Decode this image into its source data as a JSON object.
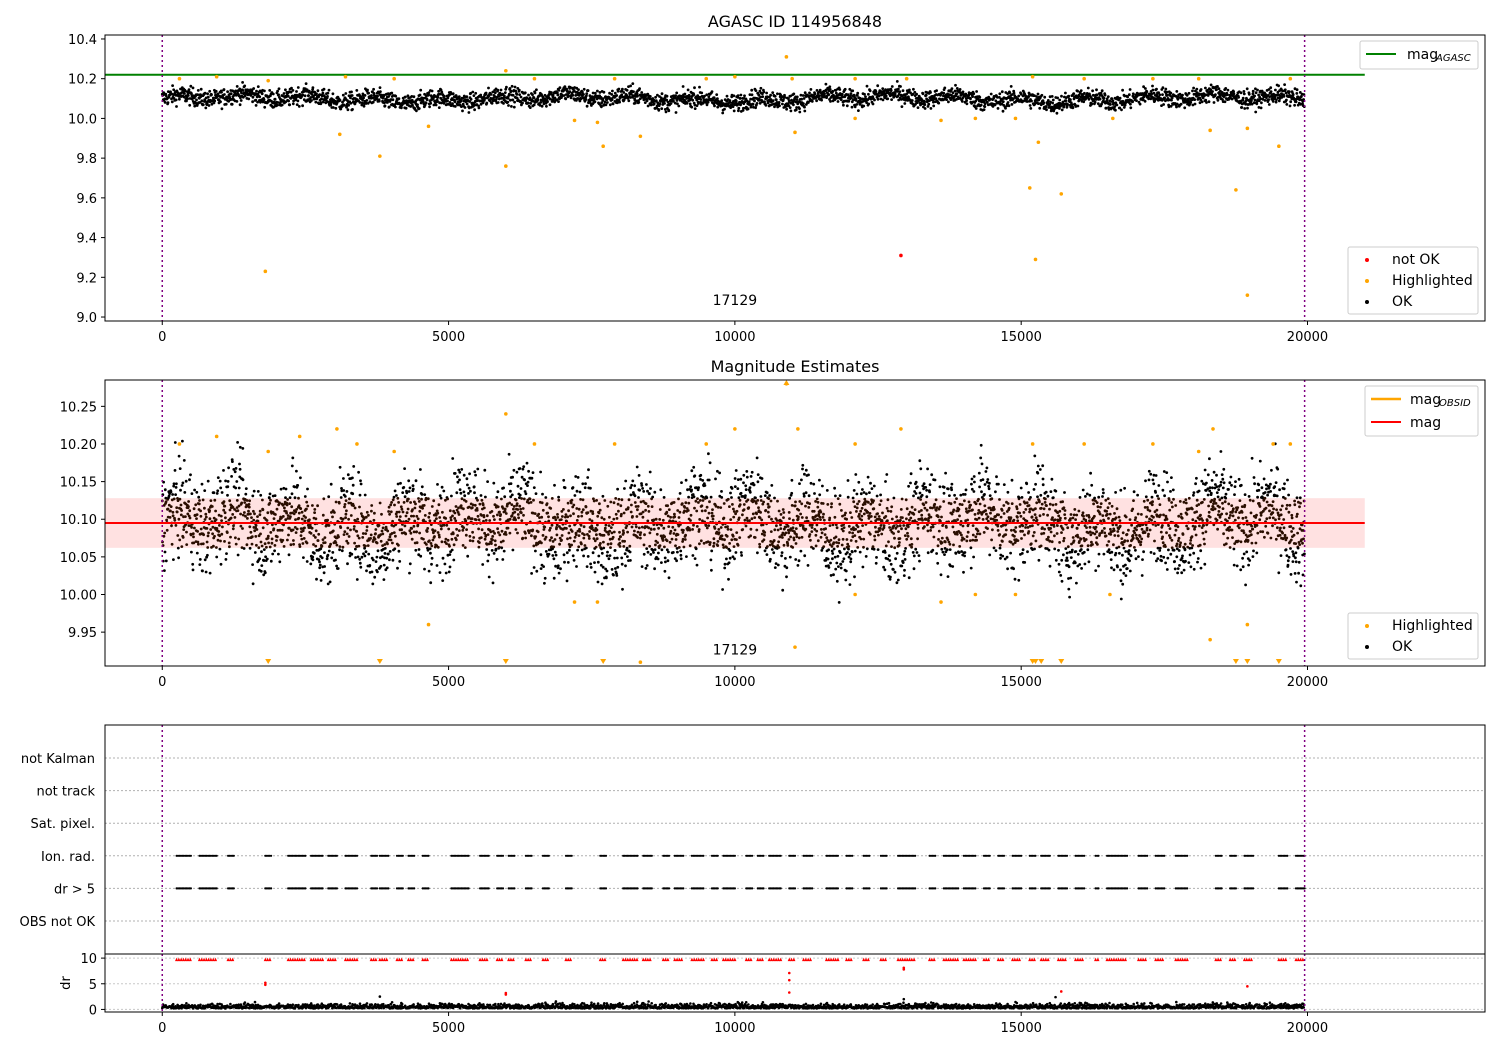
{
  "chart_data": [
    {
      "type": "scatter",
      "title": "AGASC ID 114956848",
      "xlim": [
        -1000,
        23100
      ],
      "ylim": [
        8.98,
        10.42
      ],
      "xticks": [
        0,
        5000,
        10000,
        15000,
        20000
      ],
      "yticks": [
        9.0,
        9.2,
        9.4,
        9.6,
        9.8,
        10.0,
        10.2,
        10.4
      ],
      "ytick_labels": [
        "9.0",
        "9.2",
        "9.4",
        "9.6",
        "9.8",
        "10.0",
        "10.2",
        "10.4"
      ],
      "vlines": [
        0,
        19950
      ],
      "hline": {
        "label": "mag",
        "label_sub": "AGASC",
        "y": 10.22,
        "x_range": [
          -1000,
          21000
        ],
        "color": "#008000"
      },
      "annotation": {
        "text": "17129",
        "x": 10000,
        "y": 9.03
      },
      "ok_band": {
        "center": 10.1,
        "spread": 0.05,
        "x_range": [
          0,
          19950
        ]
      },
      "series": [
        {
          "name": "not OK",
          "color": "#ff0000",
          "points": [
            [
              12900,
              9.31
            ]
          ]
        },
        {
          "name": "Highlighted",
          "color": "#ffa500",
          "points": [
            [
              1800,
              9.23
            ],
            [
              3100,
              9.92
            ],
            [
              3800,
              9.81
            ],
            [
              4650,
              9.96
            ],
            [
              6000,
              9.76
            ],
            [
              7200,
              9.99
            ],
            [
              7600,
              9.98
            ],
            [
              7700,
              9.86
            ],
            [
              8350,
              9.91
            ],
            [
              10900,
              10.31
            ],
            [
              11050,
              9.93
            ],
            [
              12100,
              10.0
            ],
            [
              13600,
              9.99
            ],
            [
              14200,
              10.0
            ],
            [
              14900,
              10.0
            ],
            [
              15150,
              9.65
            ],
            [
              15250,
              9.29
            ],
            [
              15300,
              9.88
            ],
            [
              15700,
              9.62
            ],
            [
              16600,
              10.0
            ],
            [
              18300,
              9.94
            ],
            [
              18750,
              9.64
            ],
            [
              18950,
              9.11
            ],
            [
              18950,
              9.95
            ],
            [
              19500,
              9.86
            ],
            [
              300,
              10.2
            ],
            [
              950,
              10.21
            ],
            [
              1850,
              10.19
            ],
            [
              3200,
              10.21
            ],
            [
              4050,
              10.2
            ],
            [
              6000,
              10.24
            ],
            [
              6500,
              10.2
            ],
            [
              7900,
              10.2
            ],
            [
              9500,
              10.2
            ],
            [
              10000,
              10.21
            ],
            [
              11000,
              10.2
            ],
            [
              12100,
              10.2
            ],
            [
              13000,
              10.2
            ],
            [
              15200,
              10.21
            ],
            [
              16100,
              10.2
            ],
            [
              17300,
              10.2
            ],
            [
              18100,
              10.2
            ],
            [
              19700,
              10.2
            ]
          ]
        },
        {
          "name": "OK",
          "color": "#000000",
          "points": []
        }
      ],
      "legend_position": "lower right"
    },
    {
      "type": "scatter",
      "title": "Magnitude Estimates",
      "xlim": [
        -1000,
        23100
      ],
      "ylim": [
        9.905,
        10.285
      ],
      "xticks": [
        0,
        5000,
        10000,
        15000,
        20000
      ],
      "yticks": [
        9.95,
        10.0,
        10.05,
        10.1,
        10.15,
        10.2,
        10.25
      ],
      "ytick_labels": [
        "9.95",
        "10.00",
        "10.05",
        "10.10",
        "10.15",
        "10.20",
        "10.25"
      ],
      "vlines": [
        0,
        19950
      ],
      "hlines": [
        {
          "label": "mag",
          "label_sub": "OBSID",
          "color": "#ffa500",
          "y": 10.095,
          "x_range": [
            0,
            19950
          ]
        },
        {
          "label": "mag",
          "color": "#ff0000",
          "y": 10.095,
          "x_range": [
            -1000,
            21000
          ]
        }
      ],
      "band": {
        "y_low": 10.062,
        "y_high": 10.128,
        "x_range": [
          -1000,
          21000
        ],
        "color": "#ffb3b3"
      },
      "annotation": {
        "text": "17129",
        "x": 10000,
        "y": 9.915
      },
      "ok_band": {
        "center": 10.095,
        "spread": 0.055,
        "x_range": [
          0,
          19950
        ]
      },
      "series": [
        {
          "name": "Highlighted",
          "color": "#ffa500",
          "points": [
            [
              300,
              10.2
            ],
            [
              950,
              10.21
            ],
            [
              1850,
              10.19
            ],
            [
              2400,
              10.21
            ],
            [
              3050,
              10.22
            ],
            [
              3400,
              10.2
            ],
            [
              4050,
              10.19
            ],
            [
              4650,
              9.96
            ],
            [
              6000,
              10.24
            ],
            [
              6500,
              10.2
            ],
            [
              7200,
              9.99
            ],
            [
              7600,
              9.99
            ],
            [
              7900,
              10.2
            ],
            [
              8350,
              9.91
            ],
            [
              9500,
              10.2
            ],
            [
              10000,
              10.22
            ],
            [
              10900,
              10.28
            ],
            [
              11050,
              9.93
            ],
            [
              11100,
              10.22
            ],
            [
              12100,
              10.2
            ],
            [
              12100,
              10.0
            ],
            [
              12900,
              10.22
            ],
            [
              13600,
              9.99
            ],
            [
              14200,
              10.0
            ],
            [
              14900,
              10.0
            ],
            [
              15200,
              10.2
            ],
            [
              16100,
              10.2
            ],
            [
              16550,
              10.0
            ],
            [
              17300,
              10.2
            ],
            [
              18100,
              10.19
            ],
            [
              18300,
              9.94
            ],
            [
              18350,
              10.22
            ],
            [
              18950,
              9.96
            ],
            [
              19400,
              10.2
            ],
            [
              19700,
              10.2
            ]
          ]
        },
        {
          "name": "OK",
          "color": "#000000",
          "points": []
        }
      ],
      "clipped_markers": [
        1850,
        3800,
        6000,
        7700,
        15200,
        15250,
        15350,
        15700,
        18750,
        18950,
        19500
      ],
      "legend_position": "lower right"
    },
    {
      "type": "scatter",
      "title": "",
      "xlim": [
        -1000,
        23100
      ],
      "categories": [
        "not Kalman",
        "not track",
        "Sat. pixel.",
        "Ion. rad.",
        "dr > 5",
        "OBS not OK"
      ],
      "flag_segments": [
        [
          250,
          500
        ],
        [
          650,
          950
        ],
        [
          1150,
          1250
        ],
        [
          1800,
          1900
        ],
        [
          2200,
          2500
        ],
        [
          2600,
          2800
        ],
        [
          2900,
          3050
        ],
        [
          3200,
          3400
        ],
        [
          3650,
          3750
        ],
        [
          3800,
          3950
        ],
        [
          4100,
          4200
        ],
        [
          4300,
          4400
        ],
        [
          4550,
          4650
        ],
        [
          5050,
          5350
        ],
        [
          5550,
          5700
        ],
        [
          5850,
          5950
        ],
        [
          6050,
          6150
        ],
        [
          6350,
          6450
        ],
        [
          6650,
          6750
        ],
        [
          7050,
          7150
        ],
        [
          7650,
          7750
        ],
        [
          8050,
          8300
        ],
        [
          8400,
          8550
        ],
        [
          8750,
          8850
        ],
        [
          8950,
          9100
        ],
        [
          9250,
          9450
        ],
        [
          9600,
          9700
        ],
        [
          9800,
          10000
        ],
        [
          10200,
          10300
        ],
        [
          10400,
          10500
        ],
        [
          10600,
          10800
        ],
        [
          10950,
          11050
        ],
        [
          11200,
          11350
        ],
        [
          11600,
          11800
        ],
        [
          11950,
          12050
        ],
        [
          12250,
          12350
        ],
        [
          12550,
          12650
        ],
        [
          12850,
          13150
        ],
        [
          13400,
          13500
        ],
        [
          13650,
          13900
        ],
        [
          14000,
          14200
        ],
        [
          14350,
          14450
        ],
        [
          14600,
          14700
        ],
        [
          14850,
          15000
        ],
        [
          15150,
          15250
        ],
        [
          15350,
          15500
        ],
        [
          15650,
          15800
        ],
        [
          15950,
          16100
        ],
        [
          16300,
          16350
        ],
        [
          16500,
          16850
        ],
        [
          17050,
          17200
        ],
        [
          17350,
          17500
        ],
        [
          17700,
          17900
        ],
        [
          18400,
          18500
        ],
        [
          18650,
          18750
        ],
        [
          18900,
          19050
        ],
        [
          19500,
          19650
        ],
        [
          19800,
          19950
        ]
      ],
      "sub_panel": {
        "ylabel": "dr",
        "ylim": [
          -0.5,
          10.8
        ],
        "yticks": [
          0,
          5,
          10
        ],
        "red_points": [
          [
            1800,
            4.8
          ],
          [
            1800,
            5.2
          ],
          [
            6000,
            2.9
          ],
          [
            6000,
            3.2
          ],
          [
            10950,
            3.3
          ],
          [
            10950,
            5.7
          ],
          [
            10950,
            7.1
          ],
          [
            12950,
            7.8
          ],
          [
            12950,
            8.1
          ],
          [
            15700,
            3.5
          ],
          [
            18950,
            4.5
          ]
        ],
        "black_outliers": [
          [
            3800,
            2.5
          ],
          [
            12950,
            2.0
          ],
          [
            15600,
            2.4
          ]
        ]
      },
      "vlines": [
        0,
        19950
      ]
    }
  ]
}
